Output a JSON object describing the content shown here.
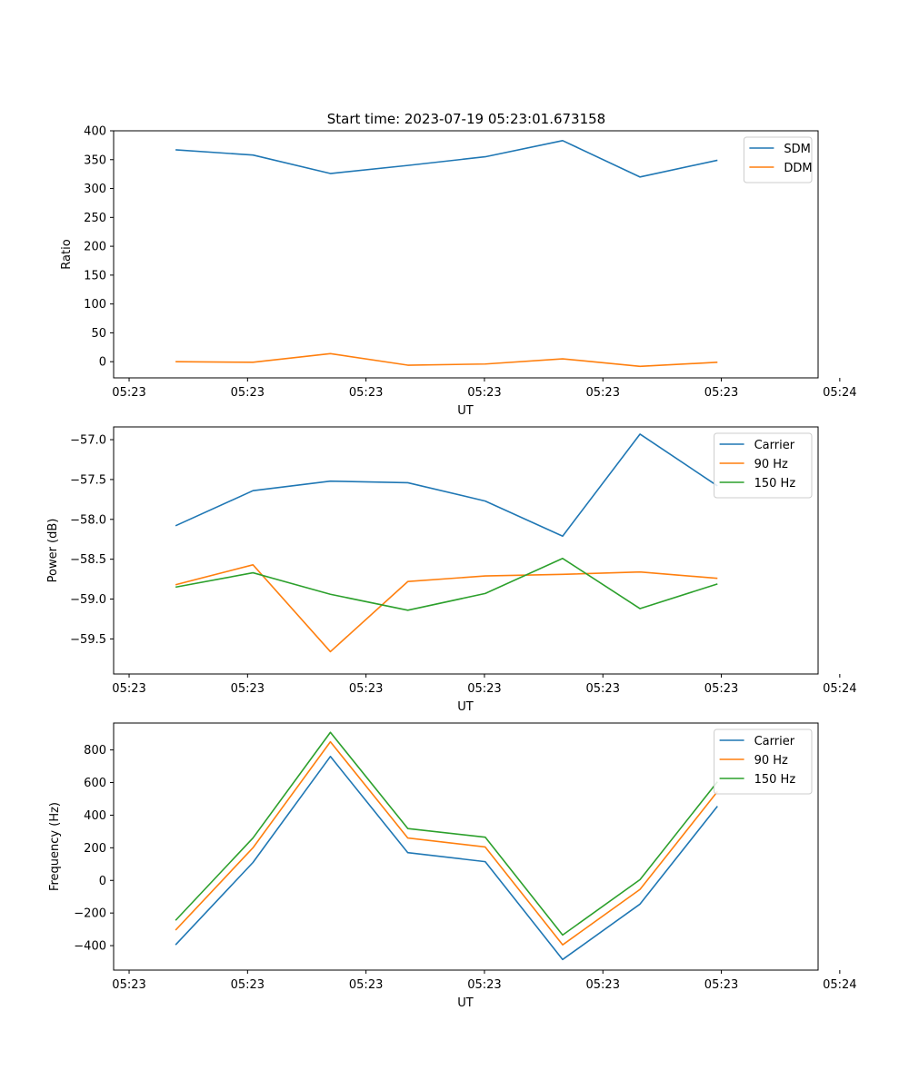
{
  "figure_title": "Start time: 2023-07-19 05:23:01.673158",
  "chart_data": [
    {
      "type": "line",
      "xlabel": "UT",
      "ylabel": "Ratio",
      "x": [
        1,
        2,
        3,
        4,
        5,
        6,
        7,
        8
      ],
      "xlim": [
        0.2,
        9.3
      ],
      "x_ticks": [
        0.4,
        1.93,
        3.46,
        4.99,
        6.52,
        8.05,
        9.58
      ],
      "x_tick_labels": [
        "05:23",
        "05:23",
        "05:23",
        "05:23",
        "05:23",
        "05:23",
        "05:24"
      ],
      "ylim": [
        -28,
        400
      ],
      "y_ticks": [
        0,
        50,
        100,
        150,
        200,
        250,
        300,
        350,
        400
      ],
      "y_tick_labels": [
        "0",
        "50",
        "100",
        "150",
        "200",
        "250",
        "300",
        "350",
        "400"
      ],
      "legend_position": "top-right",
      "series": [
        {
          "name": "SDM",
          "color": "#1f77b4",
          "values": [
            367,
            358,
            326,
            340,
            355,
            383,
            320,
            349
          ]
        },
        {
          "name": "DDM",
          "color": "#ff7f0e",
          "values": [
            0,
            -1,
            14,
            -6,
            -4,
            5,
            -8,
            -1
          ]
        }
      ]
    },
    {
      "type": "line",
      "xlabel": "UT",
      "ylabel": "Power (dB)",
      "x": [
        1,
        2,
        3,
        4,
        5,
        6,
        7,
        8
      ],
      "xlim": [
        0.2,
        9.3
      ],
      "x_ticks": [
        0.4,
        1.93,
        3.46,
        4.99,
        6.52,
        8.05,
        9.58
      ],
      "x_tick_labels": [
        "05:23",
        "05:23",
        "05:23",
        "05:23",
        "05:23",
        "05:23",
        "05:24"
      ],
      "ylim": [
        -59.94,
        -56.84
      ],
      "y_ticks": [
        -59.5,
        -59.0,
        -58.5,
        -58.0,
        -57.5,
        -57.0
      ],
      "y_tick_labels": [
        "−59.5",
        "−59.0",
        "−58.5",
        "−58.0",
        "−57.5",
        "−57.0"
      ],
      "legend_position": "top-right",
      "series": [
        {
          "name": "Carrier",
          "color": "#1f77b4",
          "values": [
            -58.08,
            -57.64,
            -57.52,
            -57.54,
            -57.77,
            -58.21,
            -56.93,
            -57.58
          ]
        },
        {
          "name": "90 Hz",
          "color": "#ff7f0e",
          "values": [
            -58.82,
            -58.57,
            -59.66,
            -58.78,
            -58.71,
            -58.69,
            -58.66,
            -58.74
          ]
        },
        {
          "name": "150 Hz",
          "color": "#2ca02c",
          "values": [
            -58.85,
            -58.67,
            -58.94,
            -59.14,
            -58.93,
            -58.49,
            -59.12,
            -58.81
          ]
        }
      ]
    },
    {
      "type": "line",
      "xlabel": "UT",
      "ylabel": "Frequency (Hz)",
      "x": [
        1,
        2,
        3,
        4,
        5,
        6,
        7,
        8
      ],
      "xlim": [
        0.2,
        9.3
      ],
      "x_ticks": [
        0.4,
        1.93,
        3.46,
        4.99,
        6.52,
        8.05,
        9.58
      ],
      "x_tick_labels": [
        "05:23",
        "05:23",
        "05:23",
        "05:23",
        "05:23",
        "05:23",
        "05:24"
      ],
      "ylim": [
        -550,
        965
      ],
      "y_ticks": [
        -400,
        -200,
        0,
        200,
        400,
        600,
        800
      ],
      "y_tick_labels": [
        "−400",
        "−200",
        "0",
        "200",
        "400",
        "600",
        "800"
      ],
      "legend_position": "top-right",
      "series": [
        {
          "name": "Carrier",
          "color": "#1f77b4",
          "values": [
            -395,
            110,
            760,
            170,
            115,
            -485,
            -145,
            455
          ]
        },
        {
          "name": "90 Hz",
          "color": "#ff7f0e",
          "values": [
            -305,
            200,
            850,
            260,
            205,
            -395,
            -55,
            545
          ]
        },
        {
          "name": "150 Hz",
          "color": "#2ca02c",
          "values": [
            -245,
            260,
            908,
            318,
            265,
            -335,
            5,
            605
          ]
        }
      ]
    }
  ]
}
